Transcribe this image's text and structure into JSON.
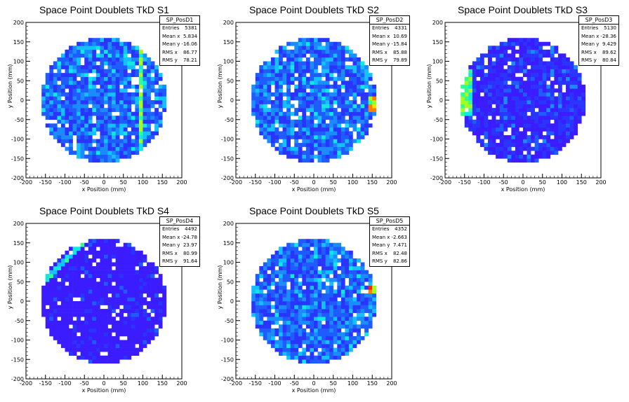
{
  "chart_data": [
    {
      "type": "heatmap",
      "title": "Space Point Doublets TkD S1",
      "xlabel": "x Position (mm)",
      "ylabel": "y Position (mm)",
      "xlim": [
        -200,
        200
      ],
      "ylim": [
        -200,
        200
      ],
      "xticks": [
        "-200",
        "-150",
        "-100",
        "-50",
        "0",
        "50",
        "100",
        "150",
        "200"
      ],
      "yticks": [
        "-200",
        "-150",
        "-100",
        "-50",
        "0",
        "50",
        "100",
        "150",
        "200"
      ],
      "grid": false,
      "legend_position": "top-right",
      "stats": {
        "name": "SP_PosD1",
        "entries": "5381",
        "mean_x": "5.834",
        "mean_y": "-16.06",
        "rms_x": "86.77",
        "rms_y": "78.21"
      },
      "stat_labels": {
        "entries": "Entries",
        "mean_x": "Mean x",
        "mean_y": "Mean y",
        "rms_x": "RMS x",
        "rms_y": "RMS y"
      },
      "disk_radius": 160,
      "feature": "vertical band near x=95",
      "base_color": "#2a34ff"
    },
    {
      "type": "heatmap",
      "title": "Space Point Doublets TkD S2",
      "xlabel": "x Position (mm)",
      "ylabel": "y Position (mm)",
      "xlim": [
        -200,
        200
      ],
      "ylim": [
        -200,
        200
      ],
      "xticks": [
        "-200",
        "-150",
        "-100",
        "-50",
        "0",
        "50",
        "100",
        "150",
        "200"
      ],
      "yticks": [
        "-200",
        "-150",
        "-100",
        "-50",
        "0",
        "50",
        "100",
        "150",
        "200"
      ],
      "grid": false,
      "legend_position": "top-right",
      "stats": {
        "name": "SP_PosD2",
        "entries": "4331",
        "mean_x": "10.69",
        "mean_y": "-15.84",
        "rms_x": "85.88",
        "rms_y": "79.89"
      },
      "stat_labels": {
        "entries": "Entries",
        "mean_x": "Mean x",
        "mean_y": "Mean y",
        "rms_x": "RMS x",
        "rms_y": "RMS y"
      },
      "disk_radius": 160,
      "feature": "hot spots at right edge",
      "base_color": "#2a34ff"
    },
    {
      "type": "heatmap",
      "title": "Space Point Doublets TkD S3",
      "xlabel": "x Position (mm)",
      "ylabel": "y Position (mm)",
      "xlim": [
        -200,
        200
      ],
      "ylim": [
        -200,
        200
      ],
      "xticks": [
        "-200",
        "-150",
        "-100",
        "-50",
        "0",
        "50",
        "100",
        "150",
        "200"
      ],
      "yticks": [
        "-200",
        "-150",
        "-100",
        "-50",
        "0",
        "50",
        "100",
        "150",
        "200"
      ],
      "grid": false,
      "legend_position": "top-right",
      "stats": {
        "name": "SP_PosD3",
        "entries": "5130",
        "mean_x": "-28.36",
        "mean_y": "9.429",
        "rms_x": "89.62",
        "rms_y": "80.84"
      },
      "stat_labels": {
        "entries": "Entries",
        "mean_x": "Mean x",
        "mean_y": "Mean y",
        "rms_x": "RMS x",
        "rms_y": "RMS y"
      },
      "disk_radius": 160,
      "feature": "arc on left edge",
      "base_color": "#3a2cff"
    },
    {
      "type": "heatmap",
      "title": "Space Point Doublets TkD S4",
      "xlabel": "x Position (mm)",
      "ylabel": "y Position (mm)",
      "xlim": [
        -200,
        200
      ],
      "ylim": [
        -200,
        200
      ],
      "xticks": [
        "-200",
        "-150",
        "-100",
        "-50",
        "0",
        "50",
        "100",
        "150",
        "200"
      ],
      "yticks": [
        "-200",
        "-150",
        "-100",
        "-50",
        "0",
        "50",
        "100",
        "150",
        "200"
      ],
      "grid": false,
      "legend_position": "top-right",
      "stats": {
        "name": "SP_PosD4",
        "entries": "4492",
        "mean_x": "-24.78",
        "mean_y": "23.97",
        "rms_x": "80.99",
        "rms_y": "91.64"
      },
      "stat_labels": {
        "entries": "Entries",
        "mean_x": "Mean x",
        "mean_y": "Mean y",
        "rms_x": "RMS x",
        "rms_y": "RMS y"
      },
      "disk_radius": 160,
      "feature": "diagonal streak upper-left",
      "base_color": "#6a1cff"
    },
    {
      "type": "heatmap",
      "title": "Space Point Doublets TkD S5",
      "xlabel": "x Position (mm)",
      "ylabel": "y Position (mm)",
      "xlim": [
        -200,
        200
      ],
      "ylim": [
        -200,
        200
      ],
      "xticks": [
        "-200",
        "-150",
        "-100",
        "-50",
        "0",
        "50",
        "100",
        "150",
        "200"
      ],
      "yticks": [
        "-200",
        "-150",
        "-100",
        "-50",
        "0",
        "50",
        "100",
        "150",
        "200"
      ],
      "grid": false,
      "legend_position": "top-right",
      "stats": {
        "name": "SP_PosD5",
        "entries": "4352",
        "mean_x": "-2.663",
        "mean_y": "7.471",
        "rms_x": "82.48",
        "rms_y": "82.86"
      },
      "stat_labels": {
        "entries": "Entries",
        "mean_x": "Mean x",
        "mean_y": "Mean y",
        "rms_x": "RMS x",
        "rms_y": "RMS y"
      },
      "disk_radius": 160,
      "feature": "hot spots at right edge",
      "base_color": "#2a34ff"
    }
  ]
}
